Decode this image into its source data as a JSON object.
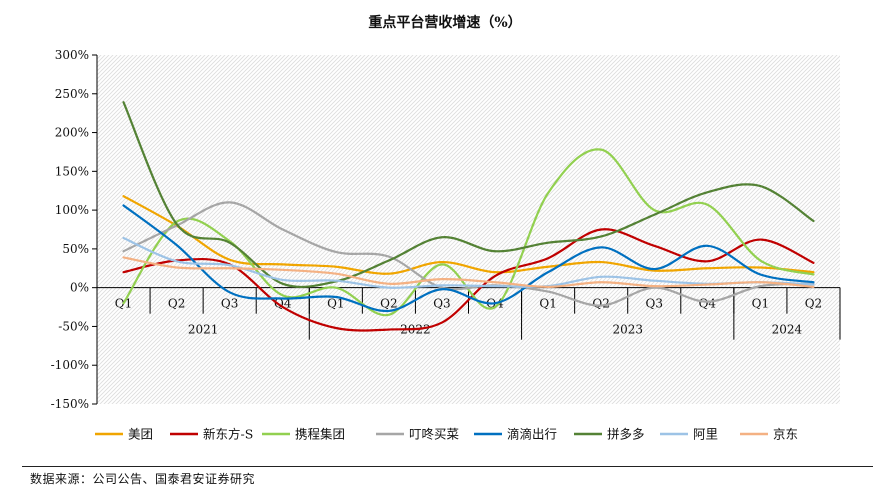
{
  "source_note": "数据来源：公司公告、国泰君安证券研究",
  "chart_data": {
    "type": "line",
    "title": "重点平台营收增速（%）",
    "xlabel": "",
    "ylabel": "",
    "ylim": [
      -150,
      300
    ],
    "yticks": [
      -150,
      -100,
      -50,
      0,
      50,
      100,
      150,
      200,
      250,
      300
    ],
    "ytick_labels": [
      "-150%",
      "-100%",
      "-50%",
      "0%",
      "50%",
      "100%",
      "150%",
      "200%",
      "250%",
      "300%"
    ],
    "grid": "hatched background",
    "legend_position": "bottom",
    "categories": [
      "Q1",
      "Q2",
      "Q3",
      "Q4",
      "Q1",
      "Q2",
      "Q3",
      "Q4",
      "Q1",
      "Q2",
      "Q3",
      "Q4",
      "Q1",
      "Q2"
    ],
    "year_groups": [
      {
        "label": "2021",
        "span": 4
      },
      {
        "label": "2022",
        "span": 4
      },
      {
        "label": "2023",
        "span": 4
      },
      {
        "label": "2024",
        "span": 2
      }
    ],
    "series": [
      {
        "name": "美团",
        "color": "#F0A500",
        "values": [
          118,
          80,
          36,
          30,
          27,
          18,
          33,
          20,
          27,
          33,
          22,
          25,
          26,
          20
        ]
      },
      {
        "name": "新东方-S",
        "color": "#C00000",
        "values": [
          20,
          35,
          30,
          -25,
          -52,
          -54,
          -45,
          15,
          38,
          75,
          54,
          34,
          62,
          32
        ]
      },
      {
        "name": "携程集团",
        "color": "#92D050",
        "values": [
          -20,
          85,
          60,
          -10,
          0,
          -35,
          30,
          -25,
          122,
          178,
          100,
          107,
          35,
          17
        ]
      },
      {
        "name": "叮咚买菜",
        "color": "#A6A6A6",
        "values": [
          47,
          80,
          110,
          75,
          46,
          40,
          0,
          3,
          -5,
          -23,
          0,
          -18,
          2,
          5
        ]
      },
      {
        "name": "滴滴出行",
        "color": "#0070C0",
        "values": [
          106,
          55,
          -6,
          -14,
          -12,
          -30,
          -2,
          -20,
          20,
          52,
          24,
          54,
          17,
          7
        ]
      },
      {
        "name": "拼多多",
        "color": "#548235",
        "values": [
          239,
          82,
          58,
          5,
          8,
          35,
          65,
          47,
          58,
          66,
          94,
          123,
          131,
          86
        ]
      },
      {
        "name": "阿里",
        "color": "#9DC3E6",
        "values": [
          64,
          34,
          29,
          10,
          9,
          0,
          3,
          2,
          2,
          14,
          9,
          5,
          7,
          4
        ]
      },
      {
        "name": "京东",
        "color": "#F4B183",
        "values": [
          39,
          26,
          25,
          23,
          18,
          5,
          11,
          7,
          1,
          7,
          2,
          4,
          7,
          1
        ]
      }
    ]
  }
}
